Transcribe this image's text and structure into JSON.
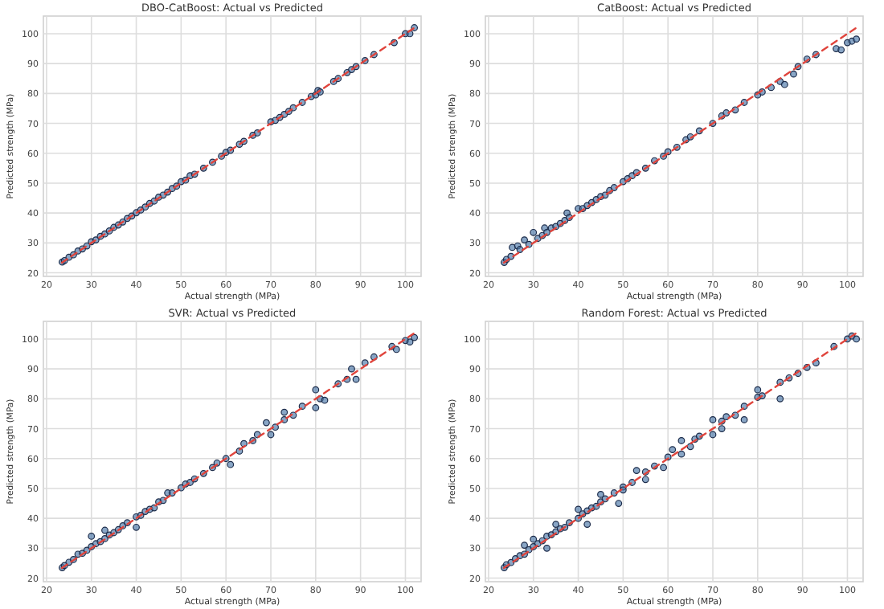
{
  "chart_data": [
    {
      "type": "scatter",
      "title": "DBO-CatBoost: Actual vs Predicted",
      "xlabel": "Actual strength (MPa)",
      "ylabel": "Predicted strength (MPa)",
      "xlim": [
        19.3,
        103.5
      ],
      "ylim": [
        18.8,
        105.9
      ],
      "xticks": [
        20,
        30,
        40,
        50,
        60,
        70,
        80,
        90,
        100
      ],
      "yticks": [
        20,
        30,
        40,
        50,
        60,
        70,
        80,
        90,
        100
      ],
      "grid": true,
      "series": [
        {
          "marker": "circle",
          "color": "#4a77a8",
          "x": [
            23.5,
            24,
            25,
            26,
            27,
            28,
            29,
            30,
            31,
            32,
            33,
            34,
            35,
            36,
            37,
            38,
            39,
            40,
            41,
            42,
            43,
            44,
            45,
            46,
            47,
            48,
            49,
            50,
            51,
            52,
            53,
            55,
            57,
            59,
            60,
            61,
            63,
            64,
            66,
            67,
            70,
            71,
            72,
            73,
            74,
            75,
            77,
            79,
            80,
            80.5,
            81,
            84,
            85,
            87,
            88,
            89,
            91,
            93,
            97.5,
            100,
            101,
            102
          ],
          "values": [
            23.6,
            24.1,
            25.2,
            26,
            27.3,
            28,
            29,
            30.4,
            31,
            32.2,
            33,
            34,
            35.2,
            36,
            37,
            38.2,
            39,
            40.1,
            41,
            42,
            43.2,
            44,
            45.3,
            46,
            47,
            48.2,
            49,
            50.5,
            51,
            52.5,
            53,
            55,
            57,
            59,
            60.3,
            61,
            63,
            64,
            66,
            66.8,
            70.5,
            71,
            72,
            73,
            74,
            75.2,
            77,
            79,
            79.5,
            81,
            80.5,
            84,
            85,
            87,
            88,
            89,
            91,
            93,
            97,
            100,
            100,
            102
          ]
        },
        {
          "type": "line",
          "line_style": "dashed",
          "color": "#e0443c",
          "x": [
            23.4,
            102.2
          ],
          "values": [
            23.4,
            102.2
          ]
        }
      ]
    },
    {
      "type": "scatter",
      "title": "CatBoost: Actual vs Predicted",
      "xlabel": "Actual strength (MPa)",
      "ylabel": "Predicted strength (MPa)",
      "xlim": [
        19.3,
        103.5
      ],
      "ylim": [
        18.8,
        105.9
      ],
      "xticks": [
        20,
        30,
        40,
        50,
        60,
        70,
        80,
        90,
        100
      ],
      "yticks": [
        20,
        30,
        40,
        50,
        60,
        70,
        80,
        90,
        100
      ],
      "grid": true,
      "series": [
        {
          "marker": "circle",
          "color": "#4a77a8",
          "x": [
            23.5,
            24,
            25,
            25.3,
            26.5,
            27,
            28,
            29,
            30,
            31,
            32,
            32.5,
            33,
            34,
            35,
            36,
            37,
            37.5,
            38,
            40,
            41,
            42,
            43,
            44,
            45,
            46,
            47,
            48,
            50,
            51,
            52,
            53,
            55,
            57,
            59,
            60,
            62,
            64,
            65,
            67,
            70,
            72,
            73,
            75,
            77,
            80,
            81,
            83,
            85,
            86,
            88,
            89,
            91,
            93,
            97.5,
            98.6,
            100,
            101,
            102
          ],
          "values": [
            23.5,
            24.5,
            25.5,
            28.5,
            29,
            27.8,
            31,
            29.5,
            33.5,
            31.5,
            32.5,
            35,
            33.5,
            35,
            35.5,
            36.5,
            37.5,
            40,
            38.5,
            41.5,
            41.5,
            42.5,
            43.5,
            44.5,
            45.5,
            46,
            47.5,
            48.5,
            50.5,
            51.5,
            52.5,
            53.5,
            55,
            57.5,
            59,
            60.5,
            62,
            64.5,
            65.5,
            67.5,
            70,
            72.5,
            73.5,
            74.5,
            77,
            79.5,
            80.5,
            82,
            84,
            83,
            86.5,
            89,
            91.5,
            93,
            95,
            94.6,
            97,
            97.5,
            98.2
          ]
        },
        {
          "type": "line",
          "line_style": "dashed",
          "color": "#e0443c",
          "x": [
            23.4,
            102.2
          ],
          "values": [
            23.4,
            102.2
          ]
        }
      ]
    },
    {
      "type": "scatter",
      "title": "SVR: Actual vs Predicted",
      "xlabel": "Actual strength (MPa)",
      "ylabel": "Predicted strength (MPa)",
      "xlim": [
        19.3,
        103.5
      ],
      "ylim": [
        18.8,
        105.9
      ],
      "xticks": [
        20,
        30,
        40,
        50,
        60,
        70,
        80,
        90,
        100
      ],
      "yticks": [
        20,
        30,
        40,
        50,
        60,
        70,
        80,
        90,
        100
      ],
      "grid": true,
      "series": [
        {
          "marker": "circle",
          "color": "#4a77a8",
          "x": [
            23.5,
            24,
            25,
            26,
            27,
            28,
            29,
            30,
            30,
            31,
            32,
            33,
            33,
            34,
            35,
            36,
            37,
            38,
            40,
            40,
            41,
            42,
            43,
            44,
            45,
            46,
            47,
            48,
            50,
            51,
            52,
            53,
            55,
            57,
            58,
            60,
            61,
            63,
            64,
            66,
            67,
            69,
            70,
            71,
            73,
            73,
            75,
            77,
            80,
            80,
            81,
            82,
            85,
            87,
            88,
            89,
            91,
            93,
            97,
            98,
            100,
            101,
            102
          ],
          "values": [
            23.5,
            24.2,
            25.3,
            26.2,
            28,
            28.3,
            29.3,
            30.5,
            34,
            31.5,
            32.2,
            36,
            33.2,
            34.4,
            35.2,
            36.2,
            37.5,
            38.5,
            37,
            40.5,
            41,
            42.3,
            43,
            43.5,
            45.5,
            46,
            48.5,
            48.5,
            50.2,
            51.5,
            52,
            53.2,
            55,
            57,
            58.5,
            60,
            58,
            62.5,
            65,
            66,
            68,
            72,
            68,
            70.5,
            75.5,
            73,
            74.5,
            77.5,
            83,
            77,
            80,
            79.5,
            85,
            86.5,
            90,
            86.5,
            92,
            94,
            97.5,
            96.5,
            99.5,
            99,
            100.5
          ]
        },
        {
          "type": "line",
          "line_style": "dashed",
          "color": "#e0443c",
          "x": [
            23.4,
            102.2
          ],
          "values": [
            23.4,
            102.2
          ]
        }
      ]
    },
    {
      "type": "scatter",
      "title": "Random Forest: Actual vs Predicted",
      "xlabel": "Actual strength (MPa)",
      "ylabel": "Predicted strength (MPa)",
      "xlim": [
        19.3,
        103.5
      ],
      "ylim": [
        18.8,
        105.9
      ],
      "xticks": [
        20,
        30,
        40,
        50,
        60,
        70,
        80,
        90,
        100
      ],
      "yticks": [
        20,
        30,
        40,
        50,
        60,
        70,
        80,
        90,
        100
      ],
      "grid": true,
      "series": [
        {
          "marker": "circle",
          "color": "#4a77a8",
          "x": [
            23.5,
            24,
            25,
            26,
            27,
            28,
            28,
            29,
            30,
            30,
            31,
            32,
            33,
            33,
            34,
            35,
            35,
            36,
            37,
            38,
            40,
            40,
            41,
            42,
            42,
            43,
            44,
            45,
            45,
            46,
            48,
            49,
            50,
            50,
            52,
            53,
            55,
            55,
            57,
            59,
            60,
            61,
            63,
            63,
            65,
            66,
            67,
            70,
            70,
            72,
            72,
            73,
            75,
            77,
            77,
            80,
            80,
            81,
            85,
            85,
            87,
            89,
            91,
            93,
            97,
            100,
            101,
            102
          ],
          "values": [
            23.5,
            24.5,
            25.2,
            26.5,
            27.5,
            28,
            31,
            29.5,
            33,
            30.5,
            31.5,
            32.5,
            30,
            34,
            34.5,
            38,
            35.5,
            36.5,
            37,
            38.5,
            43,
            40,
            41.5,
            38,
            42.5,
            43.5,
            44,
            48,
            45.5,
            46.5,
            48.5,
            45,
            50.5,
            49.5,
            52,
            56,
            53,
            55.5,
            57.5,
            57,
            60.5,
            63,
            66,
            61.5,
            64,
            66.5,
            67.5,
            73,
            68,
            70,
            72.5,
            74,
            74.5,
            77.5,
            73,
            83,
            80.5,
            81,
            80,
            85.5,
            87,
            88.5,
            90.5,
            92,
            97.5,
            100,
            101,
            100
          ]
        },
        {
          "type": "line",
          "line_style": "dashed",
          "color": "#e0443c",
          "x": [
            23.4,
            102.2
          ],
          "values": [
            23.4,
            102.2
          ]
        }
      ]
    }
  ]
}
